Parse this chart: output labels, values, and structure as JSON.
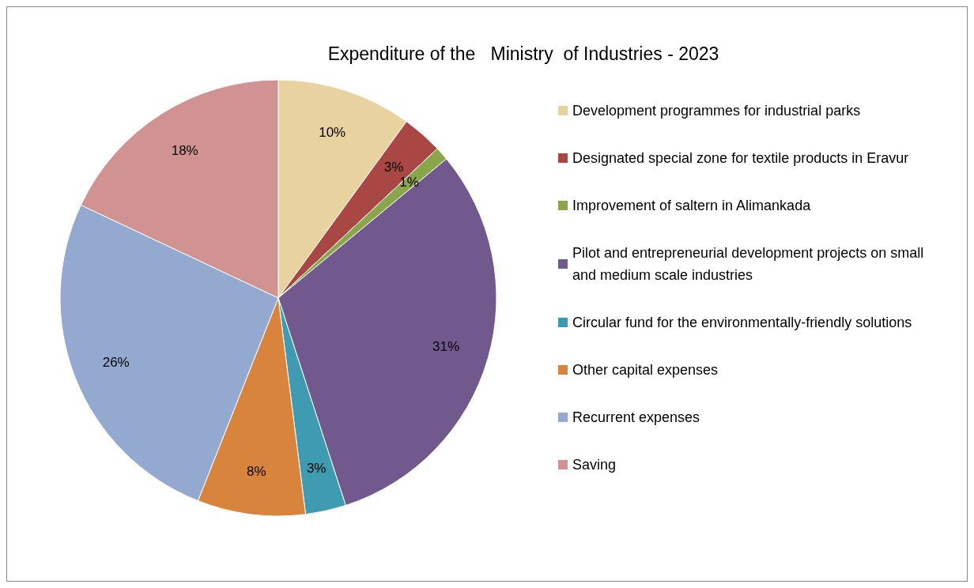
{
  "chart_data": {
    "type": "pie",
    "title": "Expenditure of the   Ministry  of Industries - 2023",
    "categories": [
      "Development programmes for industrial parks",
      "Designated special zone for textile products in Eravur",
      "Improvement of saltern in Alimankada",
      "Pilot and entrepreneurial development projects on small and medium scale industries",
      "Circular fund for the environmentally-friendly solutions",
      "Other capital expenses",
      "Recurrent expenses",
      "Saving"
    ],
    "values": [
      10,
      3,
      1,
      31,
      3,
      8,
      26,
      18
    ],
    "value_labels": [
      "10%",
      "3%",
      "1%",
      "31%",
      "3%",
      "8%",
      "26%",
      "18%"
    ],
    "colors": [
      "#e8d3a0",
      "#a84743",
      "#8aa64a",
      "#71598e",
      "#3f9bb2",
      "#d9843c",
      "#94a9d0",
      "#d09391"
    ],
    "legend": "right"
  }
}
